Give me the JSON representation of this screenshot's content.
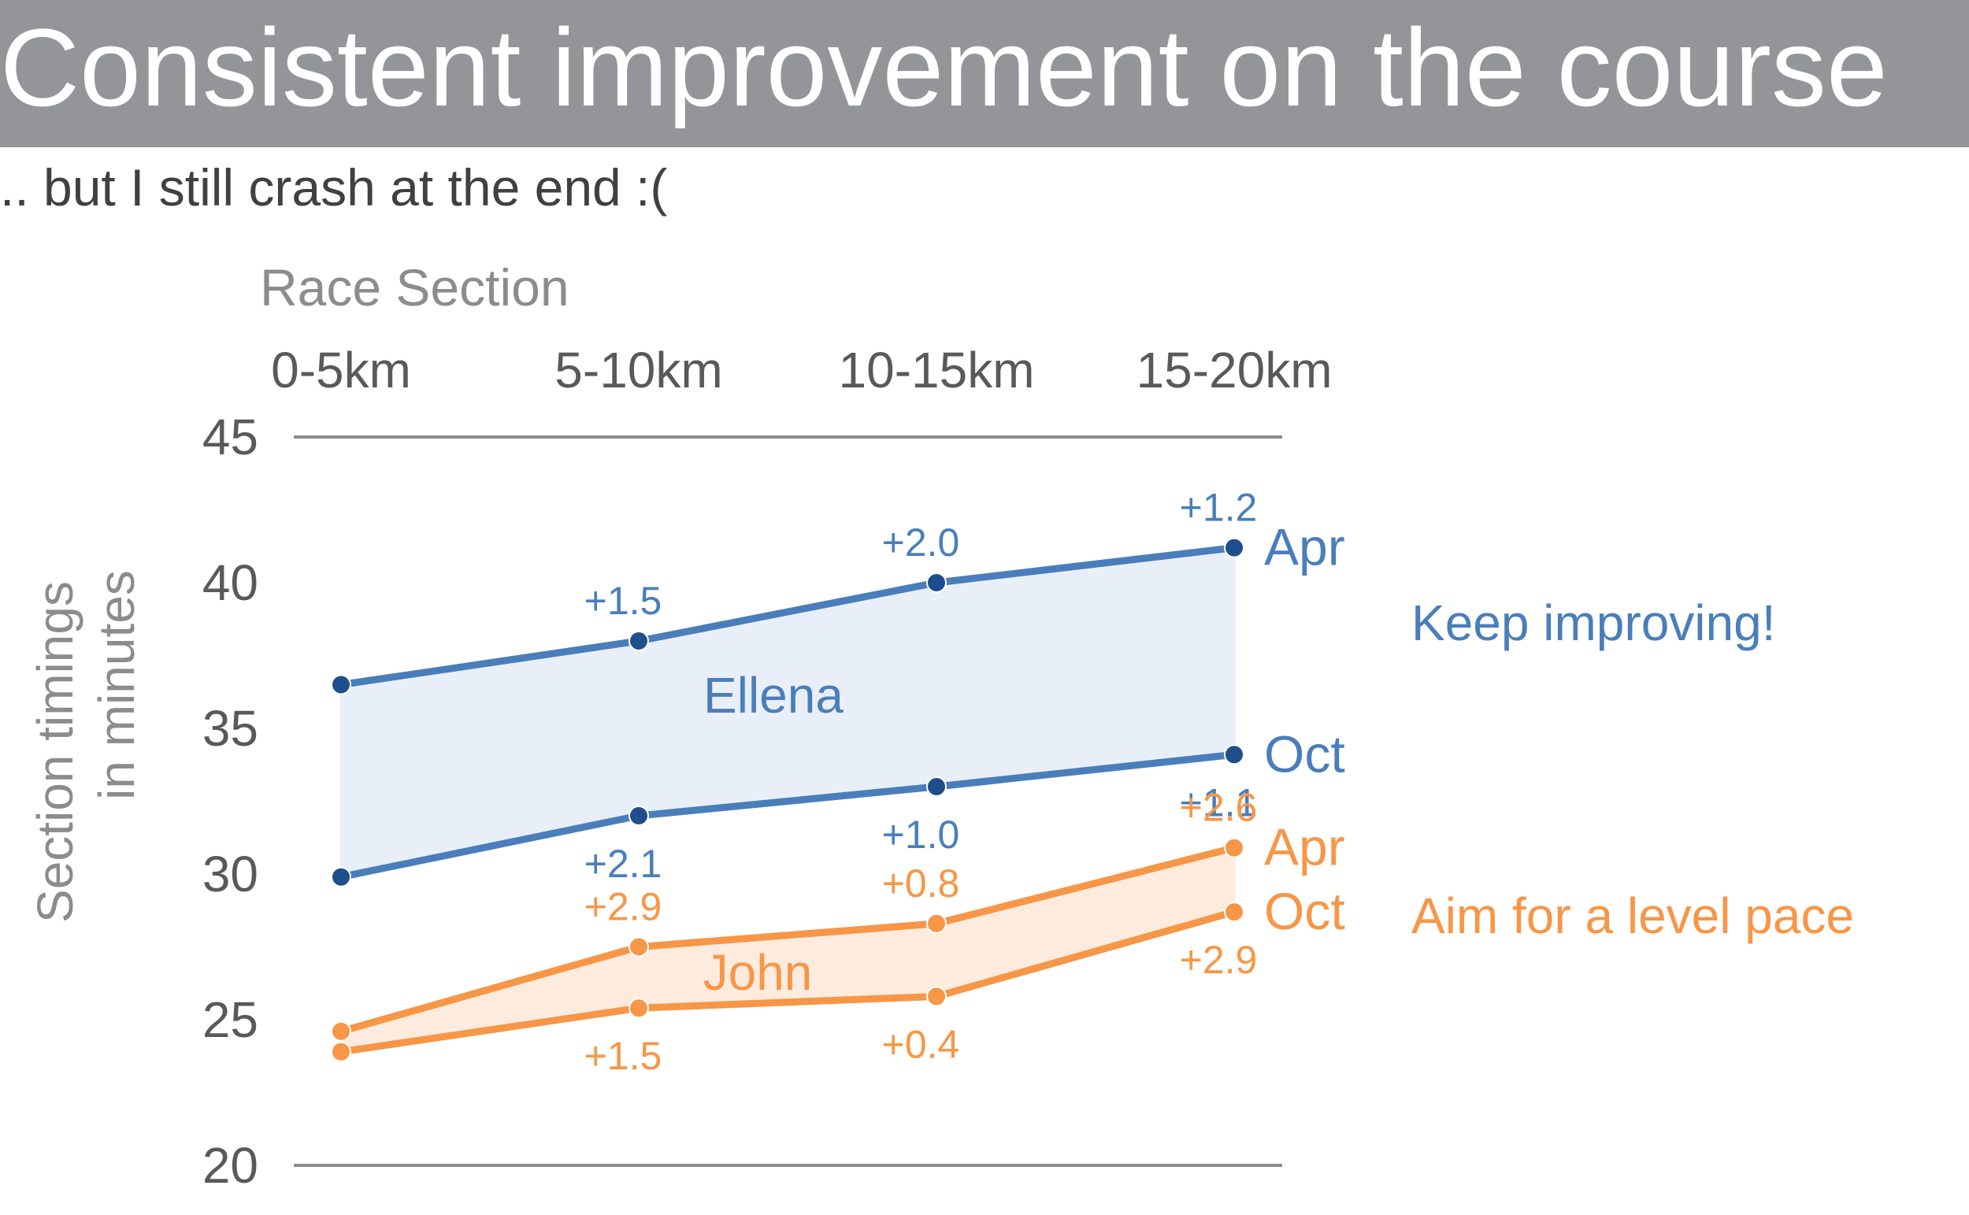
{
  "header": {
    "title": "Consistent improvement on the course",
    "subtitle": ".. but I still crash at the end :("
  },
  "chart_data": {
    "type": "line",
    "xlabel": "Race Section",
    "ylabel_line1": "Section timings",
    "ylabel_line2": "in minutes",
    "categories": [
      "0-5km",
      "5-10km",
      "10-15km",
      "15-20km"
    ],
    "ylim": [
      20,
      45
    ],
    "yticks": [
      20,
      25,
      30,
      35,
      40,
      45
    ],
    "grid": false,
    "colors": {
      "blue": "#4A7EBB",
      "blue_dark": "#1F4E8C",
      "orange": "#F79646",
      "blue_fill": "#E9EFF8",
      "orange_fill": "#FDEBDD",
      "axis": "#8C8C8C",
      "tick": "#595959",
      "label_gray": "#8C8C8C"
    },
    "groups": [
      {
        "name": "Ellena",
        "color": "#4A7EBB",
        "note": "Keep improving!",
        "series": [
          {
            "name": "Apr",
            "values": [
              36.5,
              38.0,
              40.0,
              41.2
            ],
            "deltas": [
              "",
              "+1.5",
              "+2.0",
              "+1.2"
            ],
            "label_pos": "above"
          },
          {
            "name": "Oct",
            "values": [
              29.9,
              32.0,
              33.0,
              34.1
            ],
            "deltas": [
              "",
              "+2.1",
              "+1.0",
              "+1.1"
            ],
            "label_pos": "below"
          }
        ]
      },
      {
        "name": "John",
        "color": "#F79646",
        "note": "Aim for a level pace",
        "series": [
          {
            "name": "Apr",
            "values": [
              24.6,
              27.5,
              28.3,
              30.9
            ],
            "deltas": [
              "",
              "+2.9",
              "+0.8",
              "+2.6"
            ],
            "label_pos": "above"
          },
          {
            "name": "Oct",
            "values": [
              23.9,
              25.4,
              25.8,
              28.7
            ],
            "deltas": [
              "",
              "+1.5",
              "+0.4",
              "+2.9"
            ],
            "label_pos": "below"
          }
        ]
      }
    ]
  }
}
